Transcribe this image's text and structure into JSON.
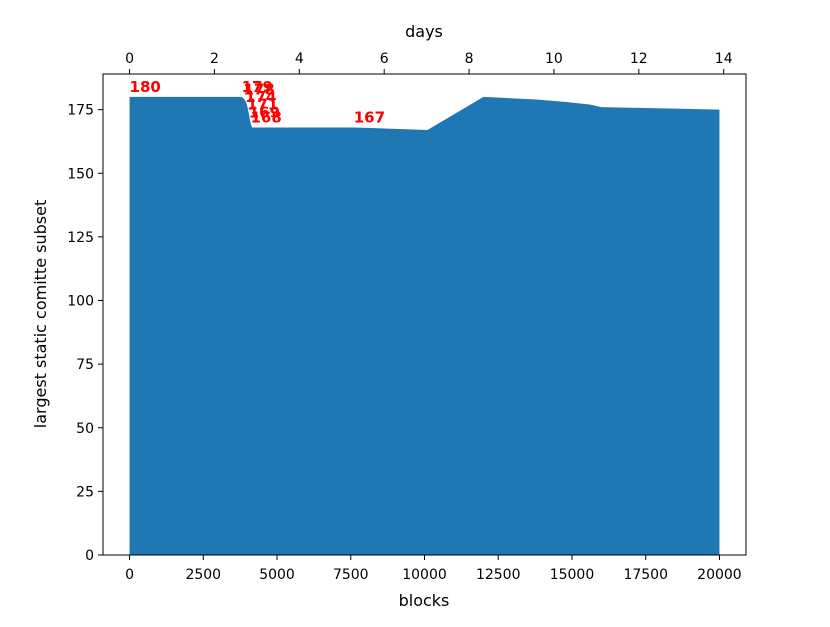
{
  "chart_data": {
    "type": "area",
    "xlabel": "blocks",
    "ylabel": "largest static comitte subset",
    "top_xlabel": "days",
    "xlim": [
      -900,
      20900
    ],
    "ylim": [
      0,
      189
    ],
    "x_ticks": [
      0,
      2500,
      5000,
      7500,
      10000,
      12500,
      15000,
      17500,
      20000
    ],
    "x_tick_labels": [
      "0",
      "2500",
      "5000",
      "7500",
      "10000",
      "12500",
      "15000",
      "17500",
      "20000"
    ],
    "y_ticks": [
      0,
      25,
      50,
      75,
      100,
      125,
      150,
      175
    ],
    "y_tick_labels": [
      "0",
      "25",
      "50",
      "75",
      "100",
      "125",
      "150",
      "175"
    ],
    "top_ticks": [
      0,
      2,
      4,
      6,
      8,
      10,
      12,
      14
    ],
    "top_tick_labels": [
      "0",
      "2",
      "4",
      "6",
      "8",
      "10",
      "12",
      "14"
    ],
    "series": [
      {
        "color": "#1f77b4",
        "x": [
          0,
          3800,
          3900,
          3950,
          4000,
          4050,
          4100,
          4150,
          7600,
          10100,
          12000,
          13800,
          14800,
          15600,
          16000,
          20000
        ],
        "y": [
          180,
          180,
          179,
          178,
          176,
          173,
          170,
          168,
          168,
          167,
          180,
          179,
          178,
          177,
          176,
          175
        ]
      }
    ],
    "annotations": [
      {
        "x": 0,
        "y": 180,
        "text": "180"
      },
      {
        "x": 3800,
        "y": 180,
        "text": "179"
      },
      {
        "x": 3860,
        "y": 179,
        "text": "178"
      },
      {
        "x": 3920,
        "y": 176,
        "text": "174"
      },
      {
        "x": 3980,
        "y": 173,
        "text": "171"
      },
      {
        "x": 4040,
        "y": 170,
        "text": "169"
      },
      {
        "x": 4100,
        "y": 168,
        "text": "168"
      },
      {
        "x": 7600,
        "y": 168,
        "text": "167"
      }
    ],
    "annotation_color": "#ff0000"
  }
}
